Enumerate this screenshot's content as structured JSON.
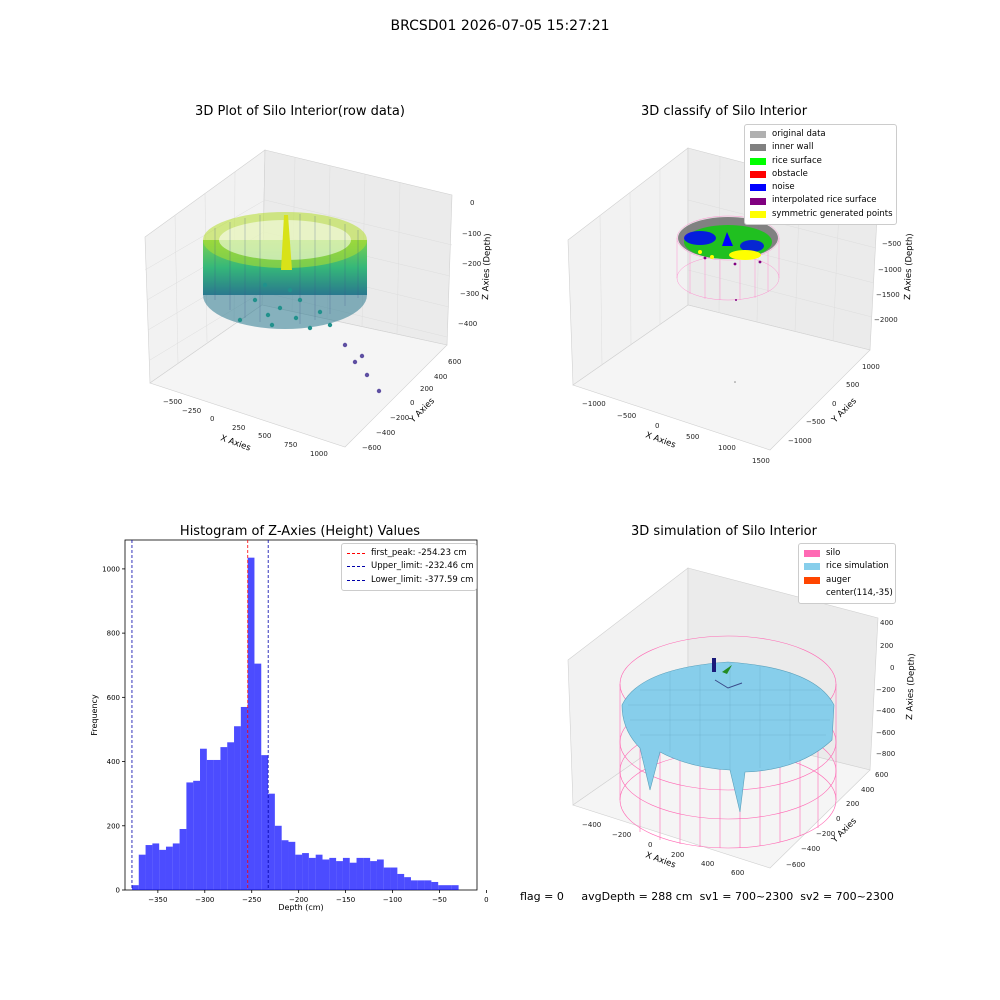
{
  "figure_title": "BRCSD01 2026-07-05 15:27:21",
  "panels": {
    "raw": {
      "title": "3D Plot of Silo Interior(row data)",
      "xlabel": "X Axies",
      "ylabel": "Y Axies",
      "zlabel": "Z Axies (Depth)",
      "xticks": [
        "−500",
        "−250",
        "0",
        "250",
        "500",
        "750",
        "1000"
      ],
      "yticks": [
        "600",
        "400",
        "200",
        "0",
        "−200",
        "−400",
        "−600"
      ],
      "zticks": [
        "0",
        "−100",
        "−200",
        "−300",
        "−400"
      ]
    },
    "classify": {
      "title": "3D classify of Silo Interior",
      "xlabel": "X Axies",
      "ylabel": "Y Axies",
      "zlabel": "Z Axies (Depth)",
      "xticks": [
        "−1000",
        "−500",
        "0",
        "500",
        "1000",
        "1500"
      ],
      "yticks": [
        "1000",
        "500",
        "0",
        "−500",
        "−1000"
      ],
      "zticks": [
        "0",
        "−500",
        "−1000",
        "−1500",
        "−2000"
      ],
      "legend": [
        {
          "label": "original data",
          "color": "#b0b0b0"
        },
        {
          "label": "inner wall",
          "color": "#808080"
        },
        {
          "label": "rice surface",
          "color": "#00ff00"
        },
        {
          "label": "obstacle",
          "color": "#ff0000"
        },
        {
          "label": "noise",
          "color": "#0000ff"
        },
        {
          "label": "interpolated rice surface",
          "color": "#800080"
        },
        {
          "label": "symmetric generated points",
          "color": "#ffff00"
        }
      ]
    },
    "histogram": {
      "title": "Histogram of Z-Axies (Height) Values",
      "legend": [
        {
          "label": "first_peak: -254.23 cm",
          "color": "#ff0000"
        },
        {
          "label": "Upper_limit: -232.46 cm",
          "color": "#0000aa"
        },
        {
          "label": "Lower_limit: -377.59 cm",
          "color": "#0000aa"
        }
      ]
    },
    "simulation": {
      "title": "3D simulation of Silo Interior",
      "xlabel": "X Axies",
      "ylabel": "Y Axies",
      "zlabel": "Z Axies (Depth)",
      "xticks": [
        "−400",
        "−200",
        "0",
        "200",
        "400",
        "600"
      ],
      "yticks": [
        "600",
        "400",
        "200",
        "0",
        "−200",
        "−400",
        "−600"
      ],
      "zticks": [
        "400",
        "200",
        "0",
        "−200",
        "−400",
        "−600",
        "−800"
      ],
      "legend": [
        {
          "label": "silo",
          "color": "#ff69b4"
        },
        {
          "label": "rice simulation",
          "color": "#87ceeb"
        },
        {
          "label": "auger",
          "color": "#ff4500"
        },
        {
          "label": "center(114,-35)",
          "color": ""
        }
      ]
    }
  },
  "chart_data": {
    "type": "bar",
    "title": "Histogram of Z-Axies (Height) Values",
    "xlabel": "Depth (cm)",
    "ylabel": "Frequency",
    "xlim": [
      -385,
      -10
    ],
    "ylim": [
      0,
      1090
    ],
    "xticks": [
      -350,
      -300,
      -250,
      -200,
      -150,
      -100,
      -50,
      0
    ],
    "xtick_labels": [
      "−350",
      "−300",
      "−250",
      "−200",
      "−150",
      "−100",
      "−50",
      "0"
    ],
    "yticks": [
      0,
      200,
      400,
      600,
      800,
      1000
    ],
    "bin_start": -377.59,
    "bin_width": 7.25,
    "values": [
      15,
      110,
      140,
      145,
      125,
      135,
      145,
      190,
      335,
      340,
      440,
      405,
      405,
      445,
      460,
      510,
      570,
      1035,
      705,
      420,
      300,
      200,
      155,
      150,
      110,
      115,
      100,
      110,
      95,
      100,
      90,
      100,
      85,
      100,
      100,
      90,
      95,
      70,
      70,
      50,
      40,
      30,
      30,
      30,
      25,
      15,
      15,
      15
    ],
    "bar_color": "#0000ff",
    "vlines": [
      {
        "name": "first_peak",
        "x": -254.23,
        "color": "#ff0000"
      },
      {
        "name": "Upper_limit",
        "x": -232.46,
        "color": "#0000aa"
      },
      {
        "name": "Lower_limit",
        "x": -377.59,
        "color": "#0000aa"
      }
    ]
  },
  "footer": {
    "flag": "flag = 0",
    "avg": "avgDepth = 288 cm",
    "sv1": "sv1 = 700~2300",
    "sv2": "sv2 = 700~2300"
  }
}
